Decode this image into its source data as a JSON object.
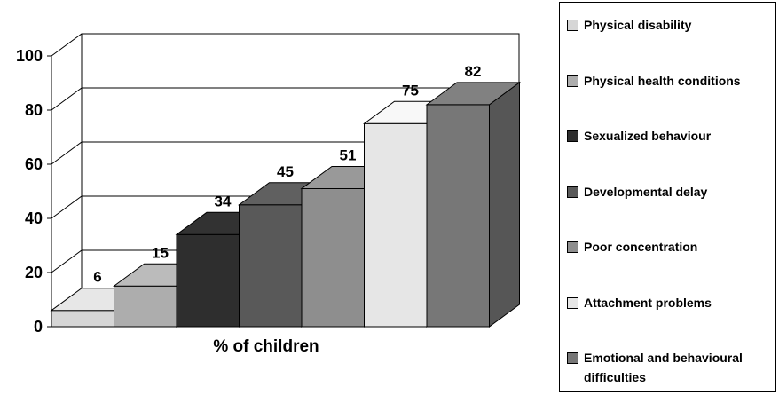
{
  "chart_data": {
    "type": "bar",
    "xlabel": "% of children",
    "ylim": [
      0,
      100
    ],
    "yticks": [
      0,
      20,
      40,
      60,
      80,
      100
    ],
    "grid": true,
    "legend_position": "right",
    "series": [
      {
        "name": "Physical disability",
        "values": [
          6
        ],
        "color": "#d6d6d6"
      },
      {
        "name": "Physical health conditions",
        "values": [
          15
        ],
        "color": "#adadad"
      },
      {
        "name": "Sexualized behaviour",
        "values": [
          34
        ],
        "color": "#2e2e2e"
      },
      {
        "name": "Developmental delay",
        "values": [
          45
        ],
        "color": "#595959"
      },
      {
        "name": "Poor concentration",
        "values": [
          51
        ],
        "color": "#8e8e8e"
      },
      {
        "name": "Attachment problems",
        "values": [
          75
        ],
        "color": "#e6e6e6"
      },
      {
        "name": "Emotional and behavioural difficulties",
        "values": [
          82
        ],
        "color": "#777777"
      }
    ]
  }
}
